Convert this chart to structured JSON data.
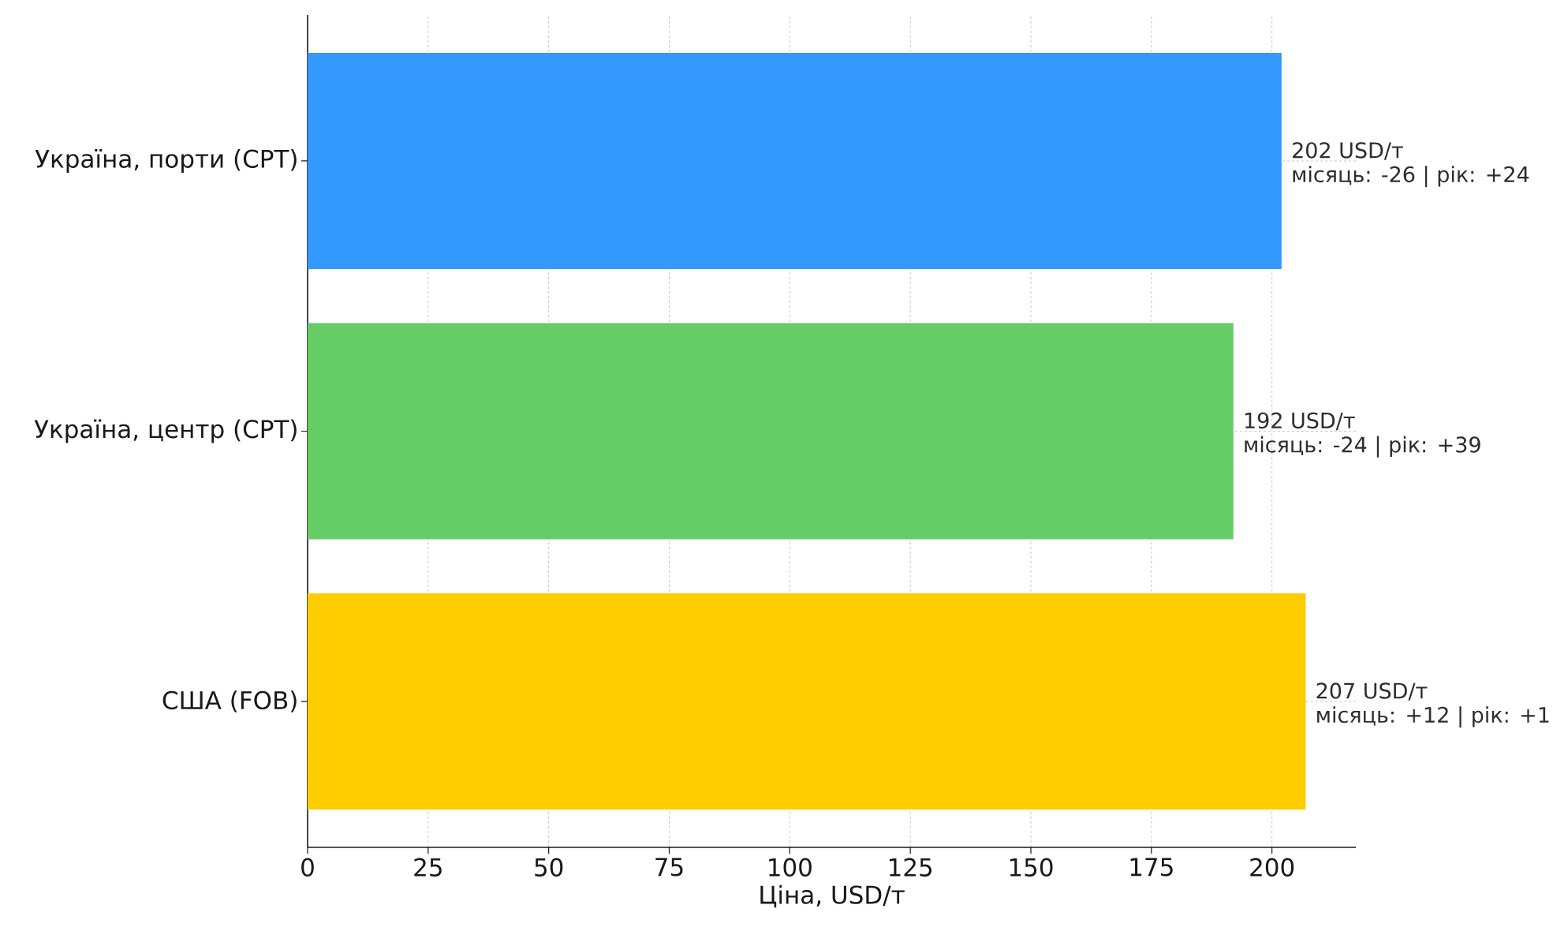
{
  "chart_data": {
    "type": "bar",
    "orientation": "horizontal",
    "categories": [
      "Україна, порти (CPT)",
      "Україна, центр (CPT)",
      "США (FOB)"
    ],
    "values": [
      202,
      192,
      207
    ],
    "colors": [
      "#3399ff",
      "#66cc66",
      "#ffcc00"
    ],
    "value_labels": [
      "202 USD/т",
      "192 USD/т",
      "207 USD/т"
    ],
    "xlabel": "Ціна, USD/т",
    "xlim": [
      0,
      217.4
    ],
    "xticks": [
      0,
      25,
      50,
      75,
      100,
      125,
      150,
      175,
      200
    ],
    "grid": true,
    "annotations": [
      {
        "text": "місяць: -26 | рік: +24",
        "x": 202,
        "y": "Україна, порти (CPT)"
      },
      {
        "text": "місяць: -24 | рік: +39",
        "x": 192,
        "y": "Україна, центр (CPT)"
      },
      {
        "text": "місяць: +12 | рік: +1",
        "x": 207,
        "y": "США (FOB)"
      }
    ]
  }
}
